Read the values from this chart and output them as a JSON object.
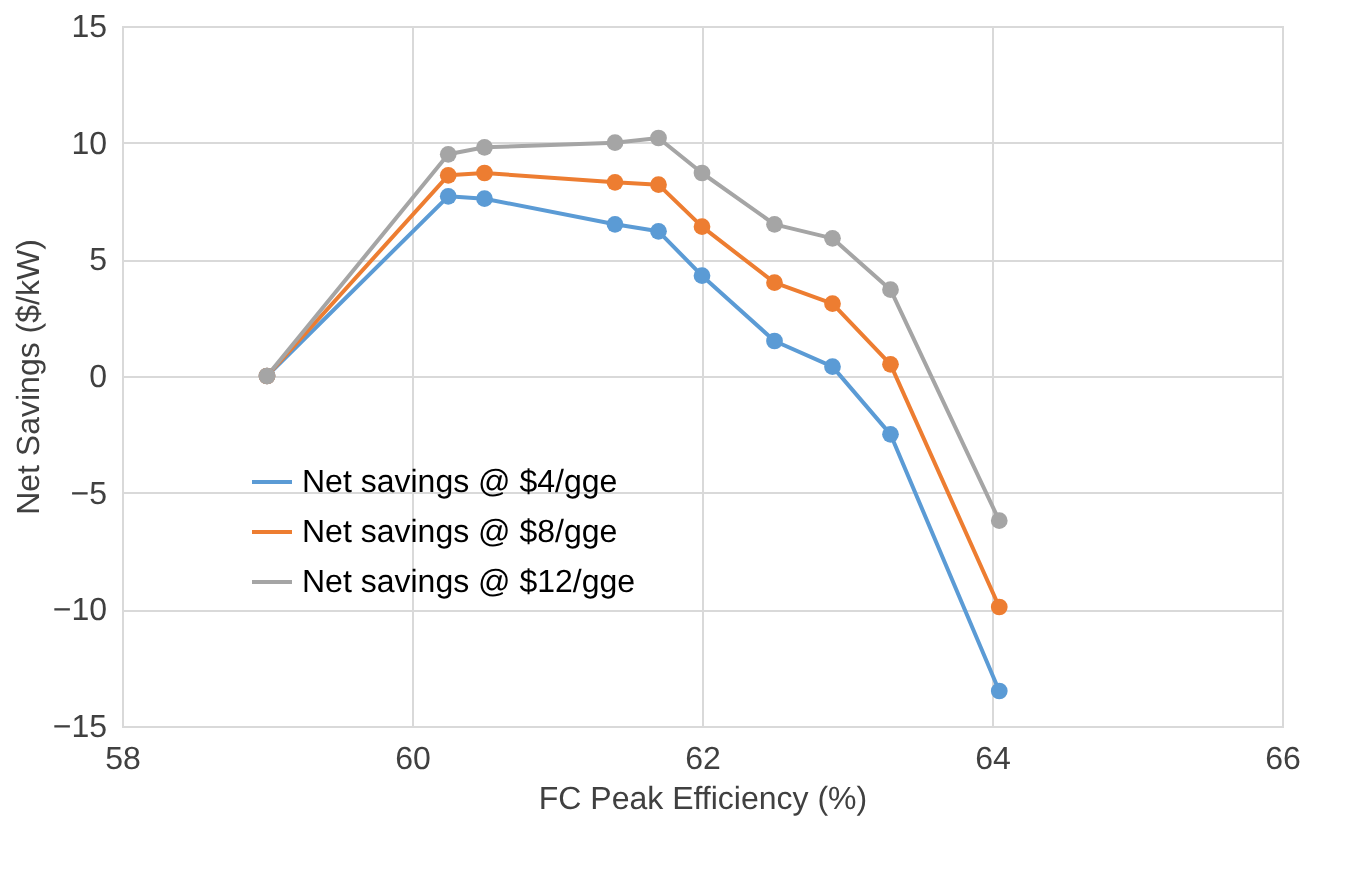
{
  "chart_data": {
    "type": "line",
    "xlabel": "FC Peak Efficiency (%)",
    "ylabel": "Net Savings ($/kW)",
    "x": [
      59,
      60.25,
      60.5,
      61.4,
      61.7,
      62,
      62.5,
      62.9,
      63.3,
      64.05
    ],
    "series": [
      {
        "name": "Net savings @ $4/gge",
        "color": "#5b9bd5",
        "values": [
          0,
          7.7,
          7.6,
          6.5,
          6.2,
          4.3,
          1.5,
          0.4,
          -2.5,
          -13.5
        ]
      },
      {
        "name": "Net savings @ $8/gge",
        "color": "#ed7d31",
        "values": [
          0,
          8.6,
          8.7,
          8.3,
          8.2,
          6.4,
          4.0,
          3.1,
          0.5,
          -9.9
        ]
      },
      {
        "name": "Net savings @ $12/gge",
        "color": "#a5a5a5",
        "values": [
          0,
          9.5,
          9.8,
          10.0,
          10.2,
          8.7,
          6.5,
          5.9,
          3.7,
          -6.2
        ]
      }
    ],
    "xlim": [
      58,
      66
    ],
    "xticks": [
      58,
      60,
      62,
      64,
      66
    ],
    "ylim": [
      -15,
      15
    ],
    "yticks": [
      -15,
      -10,
      -5,
      0,
      5,
      10,
      15
    ],
    "grid": true,
    "legend": "bottom left",
    "marker": "circle",
    "line_style": "solid"
  }
}
